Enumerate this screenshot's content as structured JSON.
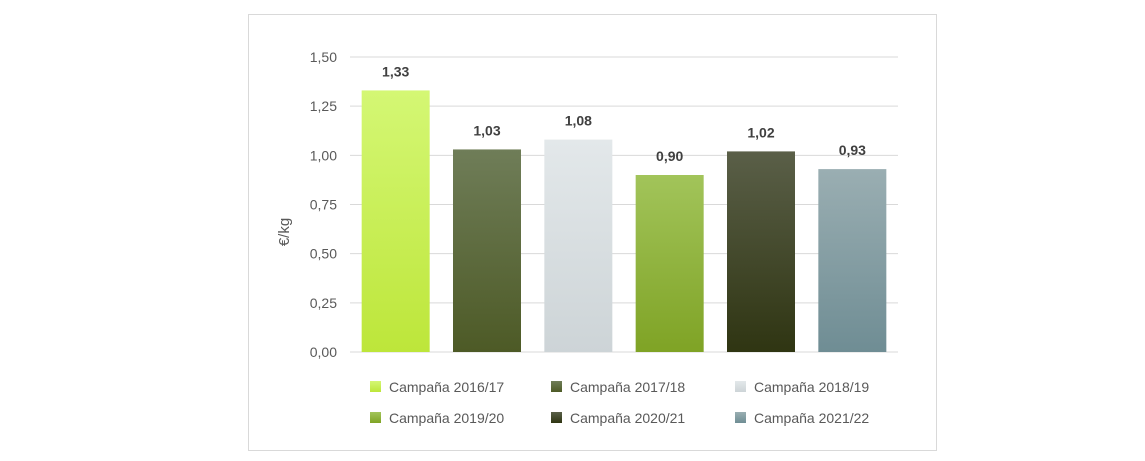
{
  "chart_data": {
    "type": "bar",
    "ylabel": "€/kg",
    "ylim": [
      0,
      1.5
    ],
    "yticks": [
      "0,00",
      "0,25",
      "0,50",
      "0,75",
      "1,00",
      "1,25",
      "1,50"
    ],
    "grid": true,
    "legend_position": "bottom",
    "series": [
      {
        "name": "Campaña 2016/17",
        "value": 1.33,
        "label": "1,33",
        "color_top": "#d4f774",
        "color_bottom": "#bde63a"
      },
      {
        "name": "Campaña 2017/18",
        "value": 1.03,
        "label": "1,03",
        "color_top": "#6f7d58",
        "color_bottom": "#4d5a26"
      },
      {
        "name": "Campaña 2018/19",
        "value": 1.08,
        "label": "1,08",
        "color_top": "#e3e8ea",
        "color_bottom": "#cdd4d7"
      },
      {
        "name": "Campaña 2019/20",
        "value": 0.9,
        "label": "0,90",
        "color_top": "#a2c45a",
        "color_bottom": "#7fa325"
      },
      {
        "name": "Campaña 2020/21",
        "value": 1.02,
        "label": "1,02",
        "color_top": "#5a5f48",
        "color_bottom": "#2f3512"
      },
      {
        "name": "Campaña 2021/22",
        "value": 0.93,
        "label": "0,93",
        "color_top": "#9aaeb2",
        "color_bottom": "#6f8d94"
      }
    ]
  }
}
